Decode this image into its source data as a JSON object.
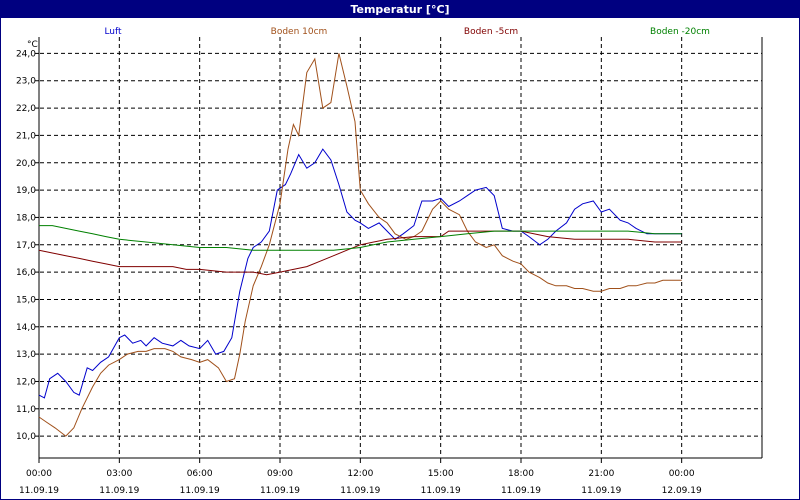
{
  "window": {
    "title": "Temperatur [°C]"
  },
  "colors": {
    "titlebar": "#000080",
    "Luft": "#0000cc",
    "Boden 10cm": "#a0501a",
    "Boden -5cm": "#800000",
    "Boden -20cm": "#008000"
  },
  "chart_data": {
    "type": "line",
    "title": "Temperatur [°C]",
    "ylabel": "°C",
    "xlabel": "",
    "ylim": [
      9.2,
      24.6
    ],
    "xlim": [
      0,
      27
    ],
    "grid": true,
    "legend_position": "top",
    "y_ticks": [
      "10,0",
      "11,0",
      "12,0",
      "13,0",
      "14,0",
      "15,0",
      "16,0",
      "17,0",
      "18,0",
      "19,0",
      "20,0",
      "21,0",
      "22,0",
      "23,0",
      "24,0"
    ],
    "x_ticks": [
      {
        "time": "00:00",
        "date": "11.09.19"
      },
      {
        "time": "03:00",
        "date": "11.09.19"
      },
      {
        "time": "06:00",
        "date": "11.09.19"
      },
      {
        "time": "09:00",
        "date": "11.09.19"
      },
      {
        "time": "12:00",
        "date": "11.09.19"
      },
      {
        "time": "15:00",
        "date": "11.09.19"
      },
      {
        "time": "18:00",
        "date": "11.09.19"
      },
      {
        "time": "21:00",
        "date": "11.09.19"
      },
      {
        "time": "00:00",
        "date": "12.09.19"
      }
    ],
    "series": [
      {
        "name": "Luft",
        "color": "#0000cc",
        "x": [
          0,
          0.2,
          0.4,
          0.7,
          1.0,
          1.3,
          1.5,
          1.8,
          2.0,
          2.3,
          2.6,
          3.0,
          3.2,
          3.5,
          3.8,
          4.0,
          4.3,
          4.6,
          5.0,
          5.3,
          5.6,
          6.0,
          6.3,
          6.6,
          6.9,
          7.2,
          7.5,
          7.8,
          8.0,
          8.3,
          8.6,
          8.9,
          9.2,
          9.4,
          9.7,
          10.0,
          10.3,
          10.6,
          10.9,
          11.2,
          11.5,
          11.8,
          12.0,
          12.3,
          12.7,
          13.0,
          13.3,
          13.6,
          14.0,
          14.3,
          14.7,
          15.0,
          15.3,
          15.7,
          16.0,
          16.3,
          16.7,
          17.0,
          17.3,
          17.7,
          18.0,
          18.3,
          18.7,
          19.0,
          19.3,
          19.7,
          20.0,
          20.3,
          20.7,
          21.0,
          21.3,
          21.7,
          22.0,
          22.3,
          22.7,
          23.0,
          23.3,
          23.7,
          24.0
        ],
        "y": [
          11.5,
          11.4,
          12.1,
          12.3,
          12.0,
          11.6,
          11.5,
          12.5,
          12.4,
          12.7,
          12.9,
          13.6,
          13.7,
          13.4,
          13.5,
          13.3,
          13.6,
          13.4,
          13.3,
          13.5,
          13.3,
          13.2,
          13.5,
          13.0,
          13.1,
          13.6,
          15.3,
          16.5,
          16.9,
          17.1,
          17.5,
          19.0,
          19.2,
          19.6,
          20.3,
          19.8,
          20.0,
          20.5,
          20.1,
          19.2,
          18.2,
          17.9,
          17.8,
          17.6,
          17.8,
          17.5,
          17.2,
          17.4,
          17.7,
          18.6,
          18.6,
          18.7,
          18.4,
          18.6,
          18.8,
          19.0,
          19.1,
          18.8,
          17.6,
          17.5,
          17.5,
          17.3,
          17.0,
          17.2,
          17.5,
          17.8,
          18.3,
          18.5,
          18.6,
          18.2,
          18.3,
          17.9,
          17.8,
          17.6,
          17.4,
          17.4,
          17.4,
          17.4,
          17.4
        ]
      },
      {
        "name": "Boden 10cm",
        "color": "#a0501a",
        "x": [
          0,
          0.3,
          0.6,
          1.0,
          1.3,
          1.6,
          2.0,
          2.3,
          2.6,
          3.0,
          3.3,
          3.7,
          4.0,
          4.3,
          4.7,
          5.0,
          5.3,
          5.7,
          6.0,
          6.3,
          6.7,
          7.0,
          7.3,
          7.5,
          7.7,
          8.0,
          8.3,
          8.6,
          9.0,
          9.3,
          9.5,
          9.7,
          10.0,
          10.3,
          10.6,
          10.9,
          11.2,
          11.5,
          11.8,
          12.0,
          12.3,
          12.7,
          13.0,
          13.3,
          13.7,
          14.0,
          14.3,
          14.7,
          15.0,
          15.3,
          15.7,
          16.0,
          16.3,
          16.7,
          17.0,
          17.3,
          17.7,
          18.0,
          18.3,
          18.7,
          19.0,
          19.3,
          19.7,
          20.0,
          20.3,
          20.7,
          21.0,
          21.3,
          21.7,
          22.0,
          22.3,
          22.7,
          23.0,
          23.3,
          23.7,
          24.0
        ],
        "y": [
          10.7,
          10.5,
          10.3,
          10.0,
          10.3,
          11.0,
          11.8,
          12.3,
          12.6,
          12.8,
          13.0,
          13.1,
          13.1,
          13.2,
          13.2,
          13.1,
          12.9,
          12.8,
          12.7,
          12.8,
          12.5,
          12.0,
          12.1,
          13.0,
          14.2,
          15.5,
          16.2,
          17.0,
          18.5,
          20.5,
          21.4,
          21.0,
          23.3,
          23.8,
          22.0,
          22.2,
          24.0,
          22.8,
          21.5,
          19.0,
          18.5,
          18.0,
          17.8,
          17.4,
          17.2,
          17.3,
          17.5,
          18.3,
          18.6,
          18.3,
          18.1,
          17.5,
          17.1,
          16.9,
          17.0,
          16.6,
          16.4,
          16.3,
          16.0,
          15.8,
          15.6,
          15.5,
          15.5,
          15.4,
          15.4,
          15.3,
          15.3,
          15.4,
          15.4,
          15.5,
          15.5,
          15.6,
          15.6,
          15.7,
          15.7,
          15.7
        ]
      },
      {
        "name": "Boden -5cm",
        "color": "#800000",
        "x": [
          0,
          0.5,
          1.0,
          1.5,
          2.0,
          2.5,
          3.0,
          4.0,
          5.0,
          5.5,
          6.0,
          7.0,
          7.5,
          8.0,
          8.5,
          9.0,
          9.5,
          10.0,
          10.5,
          11.0,
          11.5,
          12.0,
          12.5,
          13.0,
          14.0,
          15.0,
          15.3,
          15.5,
          16.0,
          17.0,
          18.0,
          19.0,
          20.0,
          21.0,
          22.0,
          23.0,
          24.0
        ],
        "y": [
          16.8,
          16.7,
          16.6,
          16.5,
          16.4,
          16.3,
          16.2,
          16.2,
          16.2,
          16.1,
          16.1,
          16.0,
          16.0,
          16.0,
          15.9,
          16.0,
          16.1,
          16.2,
          16.4,
          16.6,
          16.8,
          17.0,
          17.1,
          17.2,
          17.3,
          17.3,
          17.5,
          17.5,
          17.5,
          17.5,
          17.5,
          17.3,
          17.2,
          17.2,
          17.2,
          17.1,
          17.1
        ]
      },
      {
        "name": "Boden -20cm",
        "color": "#008000",
        "x": [
          0,
          0.5,
          1.0,
          1.5,
          2.0,
          2.5,
          3.0,
          4.0,
          5.0,
          6.0,
          7.0,
          8.0,
          9.0,
          10.0,
          11.0,
          12.0,
          13.0,
          14.0,
          15.0,
          16.0,
          17.0,
          18.0,
          19.0,
          20.0,
          21.0,
          22.0,
          23.0,
          24.0
        ],
        "y": [
          17.7,
          17.7,
          17.6,
          17.5,
          17.4,
          17.3,
          17.2,
          17.1,
          17.0,
          16.9,
          16.9,
          16.8,
          16.8,
          16.8,
          16.8,
          16.9,
          17.1,
          17.2,
          17.3,
          17.4,
          17.5,
          17.5,
          17.5,
          17.5,
          17.5,
          17.5,
          17.4,
          17.4
        ]
      }
    ]
  }
}
